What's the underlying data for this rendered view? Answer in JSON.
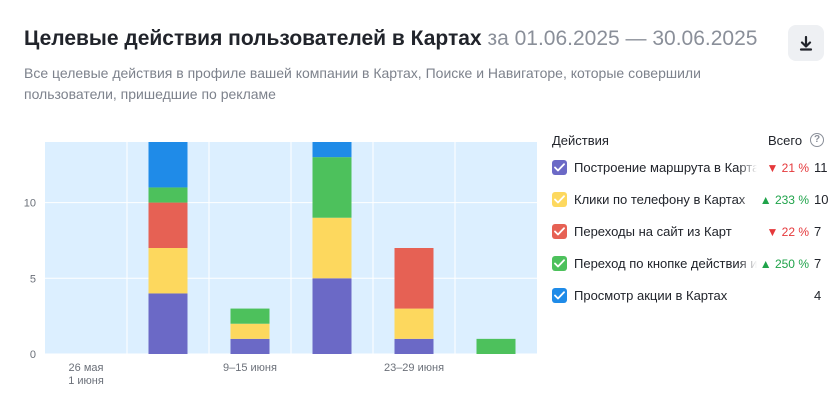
{
  "header": {
    "title": "Целевые действия пользователей в Картах",
    "period": "за 01.06.2025 — 30.06.2025",
    "subtitle": "Все целевые действия в профиле вашей компании в Картах, Поиске и Навигаторе, которые совершили пользователи, пришедшие по рекламе",
    "download_icon": "download-icon"
  },
  "legend": {
    "col_actions": "Действия",
    "col_total": "Всего",
    "help_icon": "question-circle-icon",
    "items": [
      {
        "label": "Построение маршрута в Картах",
        "delta": "21 %",
        "delta_dir": "down",
        "total": "11",
        "color": "#6b69c6"
      },
      {
        "label": "Клики по телефону в Картах",
        "delta": "233 %",
        "delta_dir": "up",
        "total": "10",
        "color": "#fdd85e"
      },
      {
        "label": "Переходы на сайт из Карт",
        "delta": "22 %",
        "delta_dir": "down",
        "total": "7",
        "color": "#e66154"
      },
      {
        "label": "Переход по кнопке действия из Карт",
        "delta": "250 %",
        "delta_dir": "up",
        "total": "7",
        "color": "#4dc15c"
      },
      {
        "label": "Просмотр акции в Картах",
        "delta": "",
        "delta_dir": "",
        "total": "4",
        "color": "#1f8be8"
      }
    ]
  },
  "chart_data": {
    "type": "bar",
    "stacked": true,
    "ylim": [
      0,
      14
    ],
    "yticks": [
      0,
      5,
      10
    ],
    "grid": true,
    "x_tick_labels": [
      {
        "at": 0,
        "lines": [
          "26 мая",
          "1 июня"
        ]
      },
      {
        "at": 2,
        "lines": [
          "9–15 июня"
        ]
      },
      {
        "at": 4,
        "lines": [
          "23–29 июня"
        ]
      }
    ],
    "series": [
      {
        "name": "Построение маршрута в Картах",
        "color": "#6b69c6",
        "values": [
          0,
          4,
          1,
          5,
          1,
          0
        ]
      },
      {
        "name": "Клики по телефону в Картах",
        "color": "#fdd85e",
        "values": [
          0,
          3,
          1,
          4,
          2,
          0
        ]
      },
      {
        "name": "Переходы на сайт из Карт",
        "color": "#e66154",
        "values": [
          0,
          3,
          0,
          0,
          4,
          0
        ]
      },
      {
        "name": "Переход по кнопке действия из Карт",
        "color": "#4dc15c",
        "values": [
          0,
          1,
          1,
          4,
          0,
          1
        ]
      },
      {
        "name": "Просмотр акции в Картах",
        "color": "#1f8be8",
        "values": [
          0,
          3,
          0,
          1,
          0,
          0
        ]
      }
    ]
  }
}
